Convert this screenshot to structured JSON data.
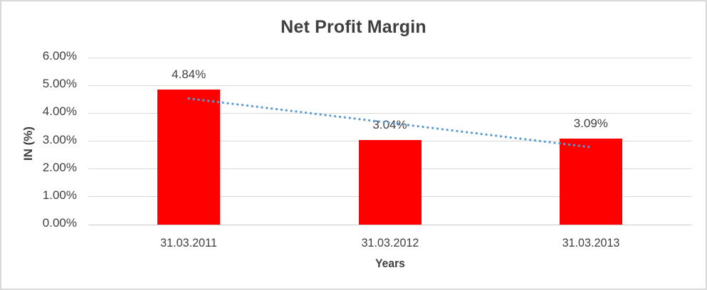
{
  "frame": {
    "background": "#FFFFFF",
    "border_color": "#D9D9D9"
  },
  "chart_data": {
    "type": "bar",
    "title": "Net Profit Margin",
    "xlabel": "Years",
    "ylabel": "IN (%)",
    "categories": [
      "31.03.2011",
      "31.03.2012",
      "31.03.2013"
    ],
    "values": [
      4.84,
      3.04,
      3.09
    ],
    "data_labels": [
      "4.84%",
      "3.04%",
      "3.09%"
    ],
    "y_ticks": [
      "0.00%",
      "1.00%",
      "2.00%",
      "3.00%",
      "4.00%",
      "5.00%",
      "6.00%"
    ],
    "ylim": [
      0,
      6
    ],
    "grid": true,
    "legend": "none",
    "bar_color": "#FF0000",
    "text_color": "#404040",
    "gridline_color": "#D9D9D9",
    "axisline_color": "#C9C9C9",
    "trendline": {
      "type": "linear",
      "style": "dotted",
      "color": "#5B9BD5",
      "start_value": 4.53,
      "end_value": 2.78
    }
  }
}
